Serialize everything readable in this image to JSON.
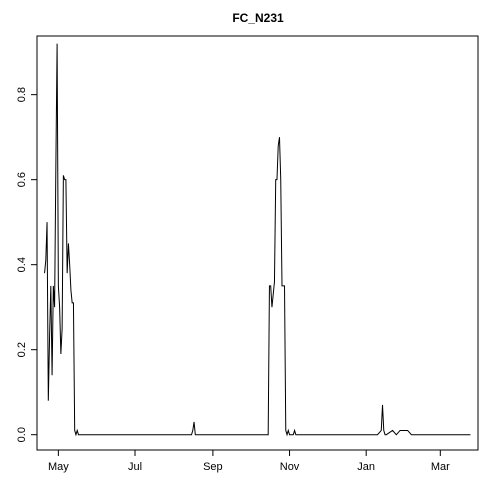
{
  "chart_data": {
    "type": "line",
    "title": "FC_N231",
    "xlabel": "",
    "ylabel": "",
    "x_unit": "date",
    "xlim": [
      "2017-04-14",
      "2018-03-31"
    ],
    "ylim": [
      -0.036,
      0.938
    ],
    "x_ticks": [
      {
        "label": "May",
        "value": "2017-05-01"
      },
      {
        "label": "Jul",
        "value": "2017-07-01"
      },
      {
        "label": "Sep",
        "value": "2017-09-01"
      },
      {
        "label": "Nov",
        "value": "2017-11-01"
      },
      {
        "label": "Jan",
        "value": "2018-01-01"
      },
      {
        "label": "Mar",
        "value": "2018-03-01"
      }
    ],
    "y_ticks": [
      0.0,
      0.2,
      0.4,
      0.6,
      0.8
    ],
    "y_tick_labels": [
      "0.0",
      "0.2",
      "0.4",
      "0.6",
      "0.8"
    ],
    "grid": false,
    "legend": "none",
    "line_color": "#000000",
    "series": [
      {
        "x": [
          "2017-04-20",
          "2017-04-21",
          "2017-04-22",
          "2017-04-23",
          "2017-04-24",
          "2017-04-25",
          "2017-04-26",
          "2017-04-27",
          "2017-04-28",
          "2017-04-29",
          "2017-04-30",
          "2017-05-01",
          "2017-05-02",
          "2017-05-03",
          "2017-05-04",
          "2017-05-05",
          "2017-05-06",
          "2017-05-07",
          "2017-05-08",
          "2017-05-09",
          "2017-05-10",
          "2017-05-11",
          "2017-05-12",
          "2017-05-13",
          "2017-05-14",
          "2017-05-15",
          "2017-05-16",
          "2017-05-17",
          "2017-05-18",
          "2017-05-19",
          "2017-05-20",
          "2017-05-21",
          "2017-05-25",
          "2017-06-01",
          "2017-06-15",
          "2017-07-01",
          "2017-07-15",
          "2017-08-01",
          "2017-08-10",
          "2017-08-15",
          "2017-08-16",
          "2017-08-17",
          "2017-08-18",
          "2017-08-25",
          "2017-09-10",
          "2017-09-25",
          "2017-10-05",
          "2017-10-15",
          "2017-10-16",
          "2017-10-17",
          "2017-10-18",
          "2017-10-19",
          "2017-10-20",
          "2017-10-21",
          "2017-10-22",
          "2017-10-23",
          "2017-10-24",
          "2017-10-25",
          "2017-10-26",
          "2017-10-27",
          "2017-10-28",
          "2017-10-29",
          "2017-10-30",
          "2017-10-31",
          "2017-11-01",
          "2017-11-02",
          "2017-11-03",
          "2017-11-04",
          "2017-11-05",
          "2017-11-06",
          "2017-11-10",
          "2017-11-20",
          "2017-12-01",
          "2017-12-15",
          "2017-12-25",
          "2017-12-30",
          "2018-01-05",
          "2018-01-10",
          "2018-01-13",
          "2018-01-14",
          "2018-01-15",
          "2018-01-16",
          "2018-01-17",
          "2018-01-22",
          "2018-01-25",
          "2018-01-28",
          "2018-02-01",
          "2018-02-03",
          "2018-02-06",
          "2018-02-10",
          "2018-02-15",
          "2018-02-25",
          "2018-03-05",
          "2018-03-15",
          "2018-03-25"
        ],
        "y": [
          0.38,
          0.41,
          0.5,
          0.08,
          0.23,
          0.35,
          0.14,
          0.35,
          0.3,
          0.63,
          0.92,
          0.35,
          0.3,
          0.19,
          0.25,
          0.61,
          0.6,
          0.6,
          0.38,
          0.45,
          0.4,
          0.34,
          0.31,
          0.31,
          0.01,
          0.0,
          0.01,
          0.0,
          0.0,
          0.0,
          0.0,
          0.0,
          0.0,
          0.0,
          0.0,
          0.0,
          0.0,
          0.0,
          0.0,
          0.0,
          0.01,
          0.03,
          0.0,
          0.0,
          0.0,
          0.0,
          0.0,
          0.0,
          0.35,
          0.35,
          0.3,
          0.33,
          0.36,
          0.6,
          0.6,
          0.68,
          0.7,
          0.6,
          0.35,
          0.35,
          0.35,
          0.01,
          0.0,
          0.01,
          0.0,
          0.0,
          0.0,
          0.0,
          0.01,
          0.0,
          0.0,
          0.0,
          0.0,
          0.0,
          0.0,
          0.0,
          0.0,
          0.0,
          0.01,
          0.07,
          0.01,
          0.0,
          0.0,
          0.01,
          0.0,
          0.01,
          0.01,
          0.01,
          0.0,
          0.0,
          0.0,
          0.0,
          0.0,
          0.0,
          0.0
        ]
      }
    ]
  }
}
